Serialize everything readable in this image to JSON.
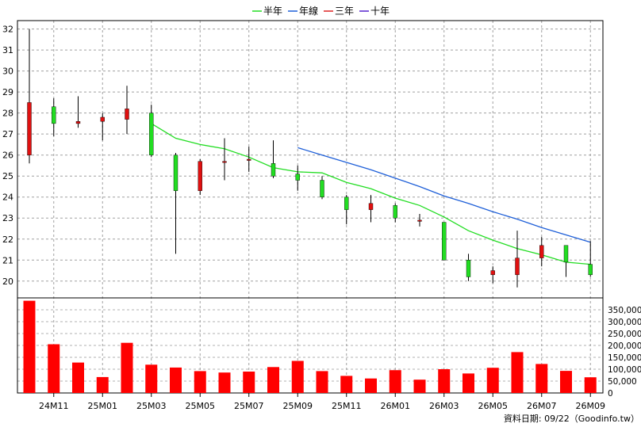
{
  "chart_data": {
    "type": "candlestick",
    "legend": [
      {
        "name": "半年",
        "color": "#22dd22"
      },
      {
        "name": "年線",
        "color": "#1e5fd8"
      },
      {
        "name": "三年",
        "color": "#dd2222"
      },
      {
        "name": "十年",
        "color": "#5522cc"
      }
    ],
    "colors": {
      "up": "#e01010",
      "down": "#22dd22",
      "volume": "#ff0000",
      "wick": "#000000"
    },
    "price_axis": {
      "ylim": [
        19.2,
        32.4
      ],
      "ticks": [
        20,
        21,
        22,
        23,
        24,
        25,
        26,
        27,
        28,
        29,
        30,
        31,
        32
      ],
      "position": "left"
    },
    "volume_axis": {
      "ylim": [
        0,
        400000
      ],
      "ticks": [
        "0",
        "50,000",
        "100,000",
        "150,000",
        "200,000",
        "250,000",
        "300,000",
        "350,000"
      ],
      "position": "right"
    },
    "x_tick_labels": [
      "24M11",
      "25M01",
      "25M03",
      "25M05",
      "25M07",
      "25M09",
      "25M11",
      "26M01",
      "26M03",
      "26M05",
      "26M07",
      "26M09"
    ],
    "candles": [
      {
        "open": 26.0,
        "high": 32.0,
        "low": 25.6,
        "close": 28.5
      },
      {
        "open": 28.3,
        "high": 28.7,
        "low": 26.9,
        "close": 27.5
      },
      {
        "open": 27.5,
        "high": 28.8,
        "low": 27.3,
        "close": 27.6
      },
      {
        "open": 27.6,
        "high": 28.0,
        "low": 26.7,
        "close": 27.8
      },
      {
        "open": 27.7,
        "high": 29.3,
        "low": 27.0,
        "close": 28.2
      },
      {
        "open": 28.0,
        "high": 28.4,
        "low": 25.9,
        "close": 26.0
      },
      {
        "open": 26.0,
        "high": 26.1,
        "low": 21.3,
        "close": 24.3
      },
      {
        "open": 24.3,
        "high": 25.8,
        "low": 24.1,
        "close": 25.7
      },
      {
        "open": 25.7,
        "high": 26.8,
        "low": 24.8,
        "close": 25.7
      },
      {
        "open": 25.8,
        "high": 26.4,
        "low": 25.2,
        "close": 25.8
      },
      {
        "open": 25.6,
        "high": 26.7,
        "low": 24.9,
        "close": 25.0
      },
      {
        "open": 25.1,
        "high": 25.5,
        "low": 24.3,
        "close": 24.8
      },
      {
        "open": 24.8,
        "high": 25.0,
        "low": 23.9,
        "close": 24.0
      },
      {
        "open": 24.0,
        "high": 24.1,
        "low": 22.7,
        "close": 23.4
      },
      {
        "open": 23.4,
        "high": 24.1,
        "low": 22.8,
        "close": 23.7
      },
      {
        "open": 23.6,
        "high": 23.7,
        "low": 22.8,
        "close": 23.0
      },
      {
        "open": 22.9,
        "high": 23.2,
        "low": 22.6,
        "close": 22.9
      },
      {
        "open": 22.8,
        "high": 22.8,
        "low": 21.0,
        "close": 21.0
      },
      {
        "open": 21.0,
        "high": 21.3,
        "low": 20.0,
        "close": 20.2
      },
      {
        "open": 20.3,
        "high": 20.7,
        "low": 19.9,
        "close": 20.5
      },
      {
        "open": 20.3,
        "high": 22.4,
        "low": 19.7,
        "close": 21.1
      },
      {
        "open": 21.1,
        "high": 22.1,
        "low": 20.7,
        "close": 21.7
      },
      {
        "open": 21.7,
        "high": 21.7,
        "low": 20.2,
        "close": 20.9
      },
      {
        "open": 20.8,
        "high": 21.9,
        "low": 20.2,
        "close": 20.3
      }
    ],
    "ma_half_year": [
      null,
      null,
      null,
      null,
      null,
      27.5,
      26.8,
      26.5,
      26.3,
      25.9,
      25.4,
      25.2,
      25.15,
      24.7,
      24.4,
      23.95,
      23.6,
      23.05,
      22.4,
      21.95,
      21.55,
      21.25,
      20.9,
      20.8
    ],
    "ma_year": [
      null,
      null,
      null,
      null,
      null,
      null,
      null,
      null,
      null,
      null,
      null,
      26.35,
      26.0,
      25.65,
      25.3,
      24.9,
      24.5,
      24.05,
      23.7,
      23.3,
      22.95,
      22.55,
      22.2,
      21.85
    ],
    "volumes": [
      388000,
      205000,
      128000,
      67000,
      211000,
      119000,
      107000,
      92000,
      86000,
      90000,
      109000,
      135000,
      92000,
      72000,
      61000,
      96000,
      56000,
      100000,
      82000,
      106000,
      172000,
      122000,
      93000,
      66000
    ],
    "footer": "資料日期: 09/22（Goodinfo.tw）"
  }
}
